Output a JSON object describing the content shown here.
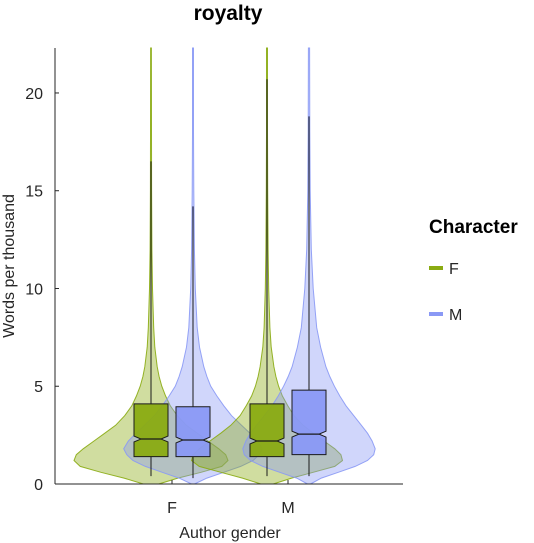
{
  "chart_data": {
    "type": "violin",
    "title": "royalty",
    "xlabel": "Author gender",
    "ylabel": "Words per thousand",
    "categories": [
      "F",
      "M"
    ],
    "ylim": [
      0,
      22.3
    ],
    "yticks": [
      0,
      5,
      10,
      15,
      20
    ],
    "legend": {
      "title": "Character",
      "placement": "right",
      "entries": [
        {
          "label": "F",
          "color": "#8aab12"
        },
        {
          "label": "M",
          "color": "#8a99f5"
        }
      ]
    },
    "groups": [
      {
        "category": "F",
        "series": "F",
        "color": "#8aab12",
        "box": {
          "whisker_low": 0.4,
          "q1": 1.4,
          "median": 2.3,
          "notch_low": 2.15,
          "notch_high": 2.45,
          "q3": 4.1,
          "whisker_high": 16.5
        },
        "max_shown": 22.3,
        "density": [
          [
            0,
            0.1
          ],
          [
            0.3,
            0.35
          ],
          [
            0.6,
            0.65
          ],
          [
            0.9,
            0.92
          ],
          [
            1.2,
            1.0
          ],
          [
            1.5,
            0.97
          ],
          [
            1.8,
            0.88
          ],
          [
            2.2,
            0.74
          ],
          [
            2.6,
            0.6
          ],
          [
            3.0,
            0.46
          ],
          [
            3.5,
            0.34
          ],
          [
            4.0,
            0.25
          ],
          [
            4.5,
            0.19
          ],
          [
            5.0,
            0.14
          ],
          [
            5.5,
            0.105
          ],
          [
            6.0,
            0.08
          ],
          [
            7.0,
            0.05
          ],
          [
            8.0,
            0.035
          ],
          [
            10.0,
            0.02
          ],
          [
            12.0,
            0.012
          ],
          [
            15.0,
            0.008
          ],
          [
            18.0,
            0.006
          ],
          [
            22.3,
            0.005
          ]
        ]
      },
      {
        "category": "F",
        "series": "M",
        "color": "#8a99f5",
        "box": {
          "whisker_low": 0.3,
          "q1": 1.4,
          "median": 2.25,
          "notch_low": 2.1,
          "notch_high": 2.4,
          "q3": 3.95,
          "whisker_high": 14.2
        },
        "max_shown": 22.3,
        "density": [
          [
            0,
            0.02
          ],
          [
            0.3,
            0.18
          ],
          [
            0.6,
            0.4
          ],
          [
            0.9,
            0.62
          ],
          [
            1.2,
            0.78
          ],
          [
            1.5,
            0.86
          ],
          [
            1.8,
            0.9
          ],
          [
            2.2,
            0.84
          ],
          [
            2.6,
            0.74
          ],
          [
            3.0,
            0.63
          ],
          [
            3.5,
            0.5
          ],
          [
            4.0,
            0.4
          ],
          [
            4.5,
            0.31
          ],
          [
            5.0,
            0.23
          ],
          [
            5.5,
            0.18
          ],
          [
            6.0,
            0.14
          ],
          [
            7.0,
            0.085
          ],
          [
            8.0,
            0.055
          ],
          [
            10.0,
            0.03
          ],
          [
            12.0,
            0.018
          ],
          [
            15.0,
            0.01
          ],
          [
            18.0,
            0.007
          ],
          [
            22.3,
            0.006
          ]
        ]
      },
      {
        "category": "M",
        "series": "F",
        "color": "#8aab12",
        "box": {
          "whisker_low": 0.4,
          "q1": 1.4,
          "median": 2.2,
          "notch_low": 2.05,
          "notch_high": 2.35,
          "q3": 4.1,
          "whisker_high": 20.7
        },
        "max_shown": 22.3,
        "density": [
          [
            0,
            0.08
          ],
          [
            0.3,
            0.32
          ],
          [
            0.6,
            0.6
          ],
          [
            0.9,
            0.88
          ],
          [
            1.2,
            0.98
          ],
          [
            1.5,
            0.96
          ],
          [
            1.8,
            0.88
          ],
          [
            2.2,
            0.74
          ],
          [
            2.6,
            0.6
          ],
          [
            3.0,
            0.47
          ],
          [
            3.5,
            0.35
          ],
          [
            4.0,
            0.27
          ],
          [
            4.5,
            0.2
          ],
          [
            5.0,
            0.15
          ],
          [
            5.5,
            0.115
          ],
          [
            6.0,
            0.09
          ],
          [
            7.0,
            0.055
          ],
          [
            8.0,
            0.038
          ],
          [
            10.0,
            0.022
          ],
          [
            12.0,
            0.014
          ],
          [
            15.0,
            0.009
          ],
          [
            18.0,
            0.007
          ],
          [
            22.3,
            0.006
          ]
        ]
      },
      {
        "category": "M",
        "series": "M",
        "color": "#8a99f5",
        "box": {
          "whisker_low": 0.4,
          "q1": 1.5,
          "median": 2.55,
          "notch_low": 2.4,
          "notch_high": 2.7,
          "q3": 4.8,
          "whisker_high": 18.8
        },
        "max_shown": 22.3,
        "density": [
          [
            0,
            0.02
          ],
          [
            0.3,
            0.16
          ],
          [
            0.6,
            0.38
          ],
          [
            0.9,
            0.6
          ],
          [
            1.2,
            0.76
          ],
          [
            1.5,
            0.84
          ],
          [
            1.8,
            0.86
          ],
          [
            2.2,
            0.82
          ],
          [
            2.6,
            0.76
          ],
          [
            3.0,
            0.68
          ],
          [
            3.5,
            0.58
          ],
          [
            4.0,
            0.48
          ],
          [
            4.5,
            0.4
          ],
          [
            5.0,
            0.33
          ],
          [
            5.5,
            0.27
          ],
          [
            6.0,
            0.22
          ],
          [
            7.0,
            0.15
          ],
          [
            8.0,
            0.1
          ],
          [
            10.0,
            0.055
          ],
          [
            12.0,
            0.03
          ],
          [
            15.0,
            0.016
          ],
          [
            18.0,
            0.01
          ],
          [
            22.3,
            0.008
          ]
        ]
      }
    ]
  }
}
